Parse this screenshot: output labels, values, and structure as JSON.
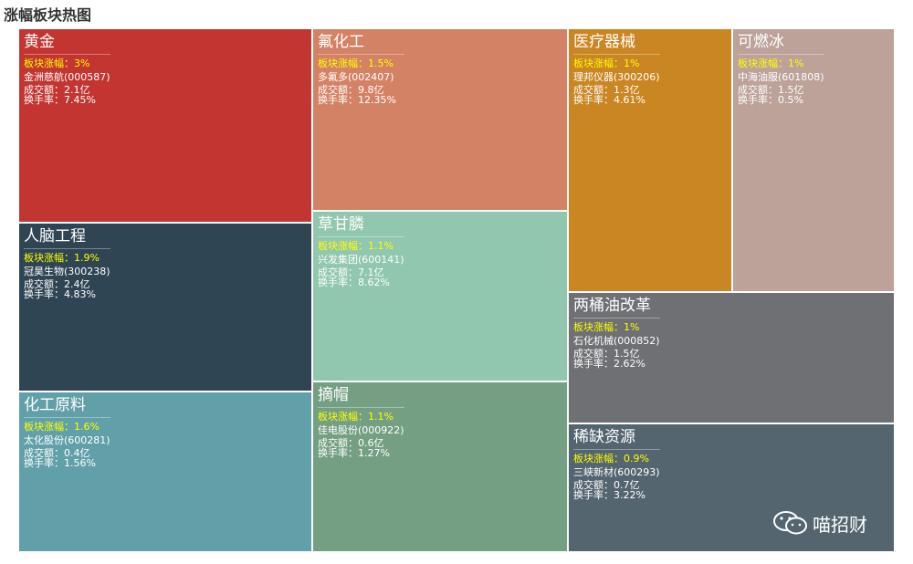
{
  "title": "涨幅板块热图",
  "watermark": "喵招财",
  "chart_data": {
    "type": "treemap",
    "title": "涨幅板块热图",
    "colors": {
      "黄金": "#c23531",
      "人脑工程": "#2f4554",
      "化工原料": "#61a0a8",
      "氟化工": "#d48265",
      "草甘膦": "#91c7ae",
      "摘帽": "#749f83",
      "医疗器械": "#ca8622",
      "可燃冰": "#bda29a",
      "两桶油改革": "#6e7074",
      "稀缺资源": "#546570"
    },
    "blocks": [
      {
        "name": "黄金",
        "change": "板块涨幅：3%",
        "stock": "金洲慈航(000587)",
        "amount": "成交额：2.1亿",
        "turnover": "换手率：7.45%"
      },
      {
        "name": "人脑工程",
        "change": "板块涨幅：1.9%",
        "stock": "冠昊生物(300238)",
        "amount": "成交额：2.4亿",
        "turnover": "换手率：4.83%"
      },
      {
        "name": "化工原料",
        "change": "板块涨幅：1.6%",
        "stock": "太化股份(600281)",
        "amount": "成交额：0.4亿",
        "turnover": "换手率：1.56%"
      },
      {
        "name": "氟化工",
        "change": "板块涨幅：1.5%",
        "stock": "多氟多(002407)",
        "amount": "成交额：9.8亿",
        "turnover": "换手率：12.35%"
      },
      {
        "name": "草甘膦",
        "change": "板块涨幅：1.1%",
        "stock": "兴发集团(600141)",
        "amount": "成交额：7.1亿",
        "turnover": "换手率：8.62%"
      },
      {
        "name": "摘帽",
        "change": "板块涨幅：1.1%",
        "stock": "佳电股份(000922)",
        "amount": "成交额：0.6亿",
        "turnover": "换手率：1.27%"
      },
      {
        "name": "医疗器械",
        "change": "板块涨幅：1%",
        "stock": "理邦仪器(300206)",
        "amount": "成交额：1.3亿",
        "turnover": "换手率：4.61%"
      },
      {
        "name": "可燃冰",
        "change": "板块涨幅：1%",
        "stock": "中海油服(601808)",
        "amount": "成交额：1.5亿",
        "turnover": "换手率：0.5%"
      },
      {
        "name": "两桶油改革",
        "change": "板块涨幅：1%",
        "stock": "石化机械(000852)",
        "amount": "成交额：1.5亿",
        "turnover": "换手率：2.62%"
      },
      {
        "name": "稀缺资源",
        "change": "板块涨幅：0.9%",
        "stock": "三峡新材(600293)",
        "amount": "成交额：0.7亿",
        "turnover": "换手率：3.22%"
      }
    ]
  }
}
